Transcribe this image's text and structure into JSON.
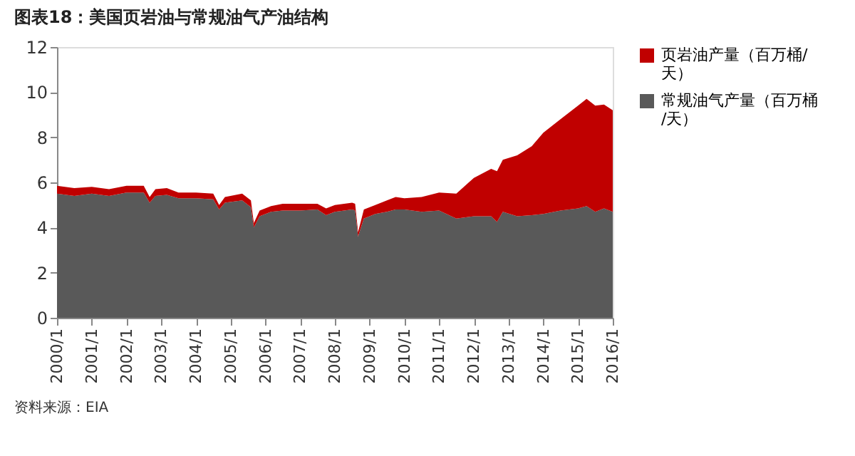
{
  "chart_data": {
    "type": "area",
    "title": "图表18：美国页岩油与常规油气产油结构",
    "annotations": [
      "资料来源：EIA"
    ],
    "x": [
      "2000-01",
      "2000-07",
      "2001-01",
      "2001-07",
      "2002-01",
      "2002-07",
      "2002-09",
      "2002-11",
      "2003-03",
      "2003-07",
      "2004-01",
      "2004-07",
      "2004-09",
      "2004-11",
      "2005-05",
      "2005-08",
      "2005-09",
      "2005-11",
      "2006-03",
      "2006-07",
      "2007-01",
      "2007-07",
      "2007-10",
      "2008-01",
      "2008-07",
      "2008-08",
      "2008-09",
      "2008-11",
      "2009-03",
      "2009-07",
      "2009-10",
      "2010-01",
      "2010-07",
      "2011-01",
      "2011-07",
      "2012-01",
      "2012-07",
      "2012-09",
      "2012-11",
      "2013-04",
      "2013-09",
      "2014-01",
      "2014-07",
      "2015-01",
      "2015-04",
      "2015-07",
      "2015-10",
      "2016-01"
    ],
    "series": [
      {
        "name": "常规油气产量（百万桶/天）",
        "color": "#595959",
        "values": [
          5.5,
          5.4,
          5.5,
          5.4,
          5.55,
          5.55,
          5.1,
          5.4,
          5.45,
          5.3,
          5.3,
          5.25,
          4.8,
          5.1,
          5.2,
          4.9,
          4.0,
          4.5,
          4.7,
          4.75,
          4.75,
          4.8,
          4.55,
          4.7,
          4.8,
          4.75,
          3.6,
          4.4,
          4.6,
          4.7,
          4.8,
          4.8,
          4.7,
          4.75,
          4.4,
          4.5,
          4.5,
          4.25,
          4.7,
          4.5,
          4.55,
          4.6,
          4.75,
          4.85,
          4.95,
          4.7,
          4.85,
          4.7
        ]
      },
      {
        "name": "页岩油产量（百万桶/天）",
        "color": "#c00000",
        "values": [
          0.35,
          0.35,
          0.3,
          0.3,
          0.3,
          0.3,
          0.25,
          0.3,
          0.3,
          0.25,
          0.25,
          0.25,
          0.2,
          0.25,
          0.3,
          0.3,
          0.2,
          0.25,
          0.25,
          0.3,
          0.3,
          0.25,
          0.3,
          0.3,
          0.3,
          0.3,
          0.2,
          0.4,
          0.4,
          0.5,
          0.55,
          0.5,
          0.65,
          0.8,
          1.1,
          1.7,
          2.1,
          2.25,
          2.3,
          2.7,
          3.05,
          3.6,
          4.05,
          4.55,
          4.75,
          4.7,
          4.6,
          4.5
        ]
      }
    ],
    "stacked": true,
    "xlim": [
      "2000-01",
      "2016-01"
    ],
    "xticks": [
      {
        "value": "2000-01",
        "label": "2000/1"
      },
      {
        "value": "2001-01",
        "label": "2001/1"
      },
      {
        "value": "2002-01",
        "label": "2002/1"
      },
      {
        "value": "2003-01",
        "label": "2003/1"
      },
      {
        "value": "2004-01",
        "label": "2004/1"
      },
      {
        "value": "2005-01",
        "label": "2005/1"
      },
      {
        "value": "2006-01",
        "label": "2006/1"
      },
      {
        "value": "2007-01",
        "label": "2007/1"
      },
      {
        "value": "2008-01",
        "label": "2008/1"
      },
      {
        "value": "2009-01",
        "label": "2009/1"
      },
      {
        "value": "2010-01",
        "label": "2010/1"
      },
      {
        "value": "2011-01",
        "label": "2011/1"
      },
      {
        "value": "2012-01",
        "label": "2012/1"
      },
      {
        "value": "2013-01",
        "label": "2013/1"
      },
      {
        "value": "2014-01",
        "label": "2014/1"
      },
      {
        "value": "2015-01",
        "label": "2015/1"
      },
      {
        "value": "2016-01",
        "label": "2016/1"
      }
    ],
    "ylim": [
      0,
      12
    ],
    "yticks": [
      0,
      2,
      4,
      6,
      8,
      10,
      12
    ],
    "grid": false,
    "legend": "right"
  }
}
